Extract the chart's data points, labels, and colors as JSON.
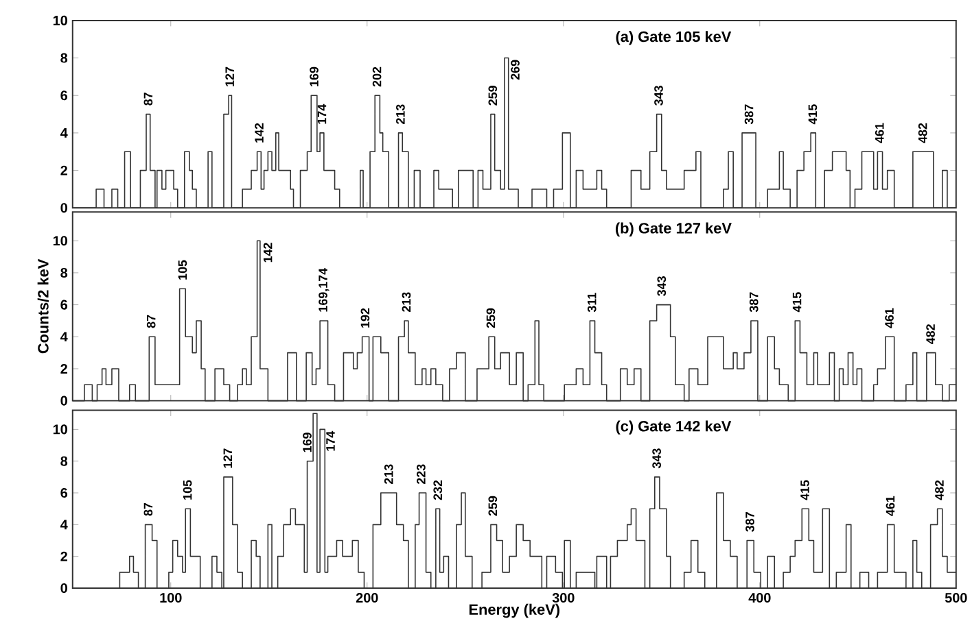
{
  "chart_data": [
    {
      "type": "step",
      "title": "(a) Gate 105 keV",
      "color": "#333333",
      "xlim": [
        50,
        500
      ],
      "ylim": [
        0,
        10
      ],
      "xticks": [
        100,
        200,
        300,
        400,
        500
      ],
      "yticks": [
        0,
        2,
        4,
        6,
        8,
        10
      ],
      "tick_labels": "y",
      "x": [
        50,
        62,
        66,
        70,
        73,
        76.5,
        79.5,
        84.5,
        87.5,
        89.5,
        92,
        93,
        95.5,
        97.5,
        101.5,
        103.5,
        107,
        109.5,
        111,
        113,
        119,
        121,
        127,
        129.5,
        131,
        136.5,
        141,
        144,
        146,
        147.5,
        149.5,
        151.5,
        153.5,
        155,
        161,
        162.5,
        166,
        169.5,
        171.5,
        174.5,
        176,
        178,
        183.5,
        186,
        196.5,
        198,
        201.5,
        204,
        206.5,
        208,
        211,
        216,
        218,
        221,
        224,
        227,
        234,
        236.5,
        243.5,
        246.5,
        254,
        256.5,
        259,
        263,
        265,
        268,
        270,
        272,
        277,
        284,
        291.5,
        295,
        299.5,
        303.5,
        306.5,
        310,
        317,
        319.5,
        322,
        334.5,
        339.5,
        344,
        347.5,
        350,
        352.5,
        361.5,
        367.5,
        370,
        381.5,
        384,
        386.5,
        391,
        398,
        404,
        410,
        412,
        415.5,
        419,
        422.5,
        426,
        428.5,
        433,
        437,
        444,
        446,
        448.5,
        452,
        458,
        460,
        462.5,
        465,
        468.5,
        478,
        488.5,
        493,
        495.5,
        500
      ],
      "values": [
        0,
        1,
        0,
        1,
        0,
        3,
        0,
        2,
        5,
        2,
        0,
        2,
        1,
        2,
        1,
        0,
        3,
        2,
        1,
        0,
        3,
        0,
        5,
        6,
        0,
        1,
        2,
        3,
        1,
        2,
        3,
        2,
        4,
        2,
        1,
        0,
        2,
        3,
        6,
        3,
        4,
        2,
        1,
        0,
        2,
        0,
        3,
        6,
        4,
        3,
        0,
        4,
        3,
        0,
        2,
        0,
        2,
        1,
        0,
        2,
        0,
        2,
        1,
        5,
        2,
        1,
        8,
        1,
        0,
        1,
        0,
        1,
        4,
        0,
        2,
        1,
        2,
        1,
        0,
        2,
        1,
        3,
        5,
        2,
        1,
        2,
        3,
        0,
        1,
        3,
        0,
        4,
        0,
        1,
        3,
        1,
        0,
        2,
        3,
        4,
        0,
        2,
        3,
        2,
        0,
        1,
        3,
        1,
        3,
        1,
        2,
        0,
        3,
        0,
        2,
        0,
        0
      ],
      "annotations": [
        {
          "text": "87",
          "x": 88.5,
          "y": 5
        },
        {
          "text": "127",
          "x": 130,
          "y": 6
        },
        {
          "text": "142",
          "x": 145,
          "y": 3
        },
        {
          "text": "169",
          "x": 173,
          "y": 6
        },
        {
          "text": "174",
          "x": 177,
          "y": 4
        },
        {
          "text": "202",
          "x": 205,
          "y": 6
        },
        {
          "text": "213",
          "x": 217,
          "y": 4
        },
        {
          "text": "259",
          "x": 264,
          "y": 5
        },
        {
          "text": "269",
          "x": 271,
          "y": 8
        },
        {
          "text": "343",
          "x": 348.5,
          "y": 5
        },
        {
          "text": "387",
          "x": 394.5,
          "y": 4
        },
        {
          "text": "415",
          "x": 427,
          "y": 4
        },
        {
          "text": "461",
          "x": 461,
          "y": 3
        },
        {
          "text": "482",
          "x": 483,
          "y": 3
        }
      ]
    },
    {
      "type": "step",
      "title": "(b) Gate 127 keV",
      "ylabel": "Counts/2 keV",
      "color": "#333333",
      "xlim": [
        50,
        500
      ],
      "ylim": [
        0,
        11.8
      ],
      "xticks": [
        100,
        200,
        300,
        400,
        500
      ],
      "yticks": [
        0,
        2,
        4,
        6,
        8,
        10
      ],
      "tick_labels": "y",
      "x": [
        50,
        56,
        60,
        62.5,
        65,
        67,
        70,
        73.5,
        79,
        82,
        89,
        92,
        104.5,
        107.5,
        111,
        113,
        115.5,
        117.5,
        122.5,
        127,
        130,
        134,
        136.5,
        138.5,
        141,
        144,
        145.5,
        149.5,
        159.5,
        164,
        169,
        172,
        174,
        176,
        180,
        183.5,
        188,
        193,
        195,
        197.5,
        201,
        203,
        207,
        211,
        216,
        219,
        221,
        224.5,
        228,
        230,
        232.5,
        235,
        238.5,
        242,
        245.5,
        250,
        256,
        262,
        265,
        268,
        272.5,
        276,
        279.5,
        282,
        285.5,
        287.5,
        290,
        300.5,
        306.5,
        310,
        313.5,
        316,
        319.5,
        322,
        329,
        332.5,
        336,
        339.5,
        344,
        347.5,
        354.5,
        357,
        361.5,
        364,
        368.5,
        373.5,
        381.5,
        386.5,
        388.5,
        392,
        395.5,
        399,
        404,
        407.5,
        410,
        414.5,
        418,
        420.5,
        424,
        427.5,
        429.5,
        435.5,
        438,
        440.5,
        442.5,
        445,
        447.5,
        449.5,
        452,
        458,
        460,
        464,
        468.5,
        474.5,
        478,
        480,
        485,
        489.5,
        493,
        496.5,
        500
      ],
      "values": [
        0,
        1,
        0,
        1,
        2,
        1,
        2,
        0,
        1,
        0,
        4,
        1,
        7,
        4,
        3,
        5,
        2,
        0,
        2,
        1,
        0,
        1,
        2,
        1,
        4,
        10,
        2,
        0,
        3,
        0,
        3,
        1,
        2,
        5,
        1,
        0,
        3,
        2,
        3,
        4,
        0,
        4,
        3,
        0,
        4,
        5,
        3,
        1,
        2,
        1,
        2,
        1,
        0,
        2,
        3,
        0,
        2,
        4,
        2,
        3,
        1,
        3,
        0,
        1,
        5,
        1,
        0,
        1,
        2,
        1,
        5,
        3,
        1,
        0,
        2,
        1,
        2,
        0,
        5,
        6,
        4,
        1,
        0,
        2,
        1,
        4,
        2,
        3,
        2,
        3,
        5,
        0,
        4,
        2,
        1,
        0,
        5,
        3,
        1,
        3,
        1,
        3,
        0,
        2,
        1,
        3,
        1,
        2,
        0,
        1,
        2,
        4,
        0,
        1,
        3,
        0,
        3,
        1,
        0,
        1,
        1
      ],
      "annotations": [
        {
          "text": "87",
          "x": 90,
          "y": 4
        },
        {
          "text": "105",
          "x": 106,
          "y": 7
        },
        {
          "text": "142",
          "x": 145,
          "y": 10
        },
        {
          "text": "169,174",
          "x": 178,
          "y": 5
        },
        {
          "text": "192",
          "x": 199,
          "y": 4
        },
        {
          "text": "213",
          "x": 220,
          "y": 5
        },
        {
          "text": "259",
          "x": 263,
          "y": 4
        },
        {
          "text": "311",
          "x": 314.5,
          "y": 5
        },
        {
          "text": "343",
          "x": 350,
          "y": 6
        },
        {
          "text": "387",
          "x": 397,
          "y": 5
        },
        {
          "text": "415",
          "x": 419,
          "y": 5
        },
        {
          "text": "461",
          "x": 466,
          "y": 4
        },
        {
          "text": "482",
          "x": 487,
          "y": 3
        }
      ]
    },
    {
      "type": "step",
      "title": "(c) Gate 142 keV",
      "xlabel": "Energy (keV)",
      "color": "#333333",
      "xlim": [
        50,
        500
      ],
      "ylim": [
        0,
        11.2
      ],
      "xticks": [
        100,
        200,
        300,
        400,
        500
      ],
      "yticks": [
        0,
        2,
        4,
        6,
        8,
        10
      ],
      "x": [
        50,
        74,
        79,
        81,
        83.5,
        87,
        90.5,
        93,
        99,
        101,
        103.5,
        106,
        107.5,
        110,
        115,
        121,
        123.5,
        126,
        127,
        131.5,
        134,
        136.5,
        141,
        143.5,
        145.5,
        149.5,
        151.5,
        154.5,
        157.5,
        161,
        163.5,
        168,
        169.5,
        172.5,
        174.5,
        176,
        178.5,
        180,
        184.5,
        187.5,
        192.5,
        195.5,
        198.5,
        203,
        207,
        215,
        218.5,
        221,
        224.5,
        226.5,
        230,
        232.5,
        235,
        237,
        239,
        241.5,
        245.5,
        248,
        250,
        253.5,
        258.5,
        263,
        266,
        269,
        272.5,
        276,
        279.5,
        283,
        289,
        291.5,
        296,
        299.5,
        300.5,
        303.5,
        306.5,
        316,
        317,
        322,
        324,
        327.5,
        332.5,
        334.5,
        337,
        341.5,
        344,
        346.5,
        349,
        352.5,
        354.5,
        361.5,
        365,
        368.5,
        372,
        378,
        381.5,
        385,
        388.5,
        393.5,
        397,
        400.5,
        404,
        407.5,
        412,
        415.5,
        418,
        421.5,
        425,
        427.5,
        432,
        435.5,
        439,
        444,
        446.5,
        451,
        455.5,
        460,
        465,
        468.5,
        474.5,
        478,
        480,
        482.5,
        487,
        490.5,
        493,
        495.5,
        500
      ],
      "values": [
        0,
        1,
        2,
        1,
        0,
        4,
        3,
        0,
        1,
        3,
        2,
        1,
        5,
        2,
        0,
        2,
        1,
        0,
        7,
        4,
        1,
        0,
        3,
        2,
        0,
        4,
        0,
        2,
        4,
        5,
        4,
        1,
        8,
        11,
        1,
        10,
        1,
        2,
        3,
        2,
        3,
        1,
        0,
        4,
        6,
        4,
        3,
        0,
        4,
        6,
        1,
        0,
        5,
        1,
        2,
        0,
        4,
        6,
        2,
        0,
        1,
        4,
        3,
        1,
        2,
        4,
        3,
        2,
        0,
        2,
        1,
        0,
        3,
        0,
        1,
        0,
        2,
        0,
        2,
        3,
        4,
        5,
        3,
        0,
        5,
        7,
        5,
        2,
        0,
        1,
        3,
        1,
        0,
        6,
        3,
        2,
        0,
        3,
        1,
        0,
        2,
        0,
        1,
        2,
        3,
        5,
        3,
        1,
        5,
        0,
        1,
        4,
        0,
        1,
        0,
        1,
        4,
        1,
        0,
        3,
        1,
        0,
        4,
        5,
        2,
        1,
        1
      ],
      "annotations": [
        {
          "text": "87",
          "x": 88.5,
          "y": 4
        },
        {
          "text": "105",
          "x": 108.5,
          "y": 5
        },
        {
          "text": "127",
          "x": 129,
          "y": 7
        },
        {
          "text": "169",
          "x": 169.5,
          "y": 8
        },
        {
          "text": "174",
          "x": 177,
          "y": 10
        },
        {
          "text": "213",
          "x": 211,
          "y": 6
        },
        {
          "text": "223",
          "x": 227.5,
          "y": 6
        },
        {
          "text": "232",
          "x": 236,
          "y": 5
        },
        {
          "text": "259",
          "x": 264,
          "y": 4
        },
        {
          "text": "343",
          "x": 347.5,
          "y": 7
        },
        {
          "text": "387",
          "x": 395,
          "y": 3
        },
        {
          "text": "415",
          "x": 423,
          "y": 5
        },
        {
          "text": "461",
          "x": 466.5,
          "y": 4
        },
        {
          "text": "482",
          "x": 491.5,
          "y": 5
        }
      ]
    }
  ]
}
